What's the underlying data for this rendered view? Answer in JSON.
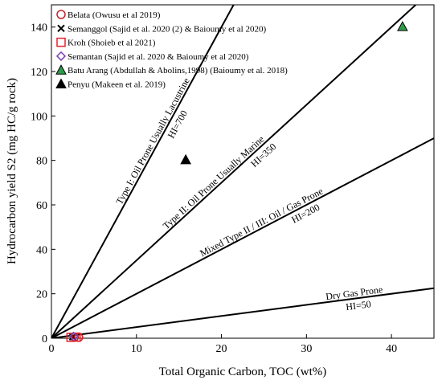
{
  "chart_data": {
    "type": "scatter",
    "xlabel": "Total Organic Carbon, TOC (wt%)",
    "ylabel": "Hydrocarbon yield S2  (mg HC/g  rock)",
    "xlim": [
      0,
      45
    ],
    "ylim": [
      0,
      150
    ],
    "xticks": [
      0,
      10,
      20,
      30,
      40
    ],
    "yticks": [
      0,
      20,
      40,
      60,
      80,
      100,
      120,
      140
    ],
    "grid": false,
    "legend_position": "top-left",
    "reference_lines": [
      {
        "hi": 700,
        "labels": [
          "Type I: Oil Prone Usually Lacustrine",
          "HI=700"
        ]
      },
      {
        "hi": 350,
        "labels": [
          "Type II: Oil Prone Usually Marine",
          "HI=350"
        ]
      },
      {
        "hi": 200,
        "labels": [
          "Mixed Type II / III: Oil / Gas Prone",
          "HI=200"
        ]
      },
      {
        "hi": 50,
        "labels": [
          "Dry Gas Prone",
          "HI=50"
        ]
      }
    ],
    "series": [
      {
        "name": "Belata (Owusu et al 2019)",
        "marker": "circle-open",
        "color": "#c0262d",
        "points": [
          [
            3.2,
            0.4
          ],
          [
            2.7,
            0.5
          ]
        ]
      },
      {
        "name": "Semanggol (Sajid et al. 2020 (2) & Baioumy et al 2020)",
        "marker": "x",
        "color": "#000000",
        "points": [
          [
            2.5,
            0.6
          ]
        ]
      },
      {
        "name": "Kroh (Shoieb et al 2021)",
        "marker": "square-open",
        "color": "#e8202a",
        "points": [
          [
            2.3,
            0.4
          ],
          [
            2.9,
            0.5
          ]
        ]
      },
      {
        "name": "Semantan (Sajid et al. 2020 & Baioumy et al 2020)",
        "marker": "diamond-open",
        "color": "#7a3db0",
        "points": [
          [
            2.6,
            0.8
          ]
        ]
      },
      {
        "name": "Batu Arang (Abdullah & Abolins,1998) (Baioumy et al. 2018)",
        "marker": "triangle-green",
        "color": "#2f9c4a",
        "points": [
          [
            41.3,
            140.2
          ]
        ]
      },
      {
        "name": "Penyu (Makeen et al. 2019)",
        "marker": "triangle-black",
        "color": "#000000",
        "points": [
          [
            15.8,
            80.3
          ]
        ]
      }
    ]
  }
}
